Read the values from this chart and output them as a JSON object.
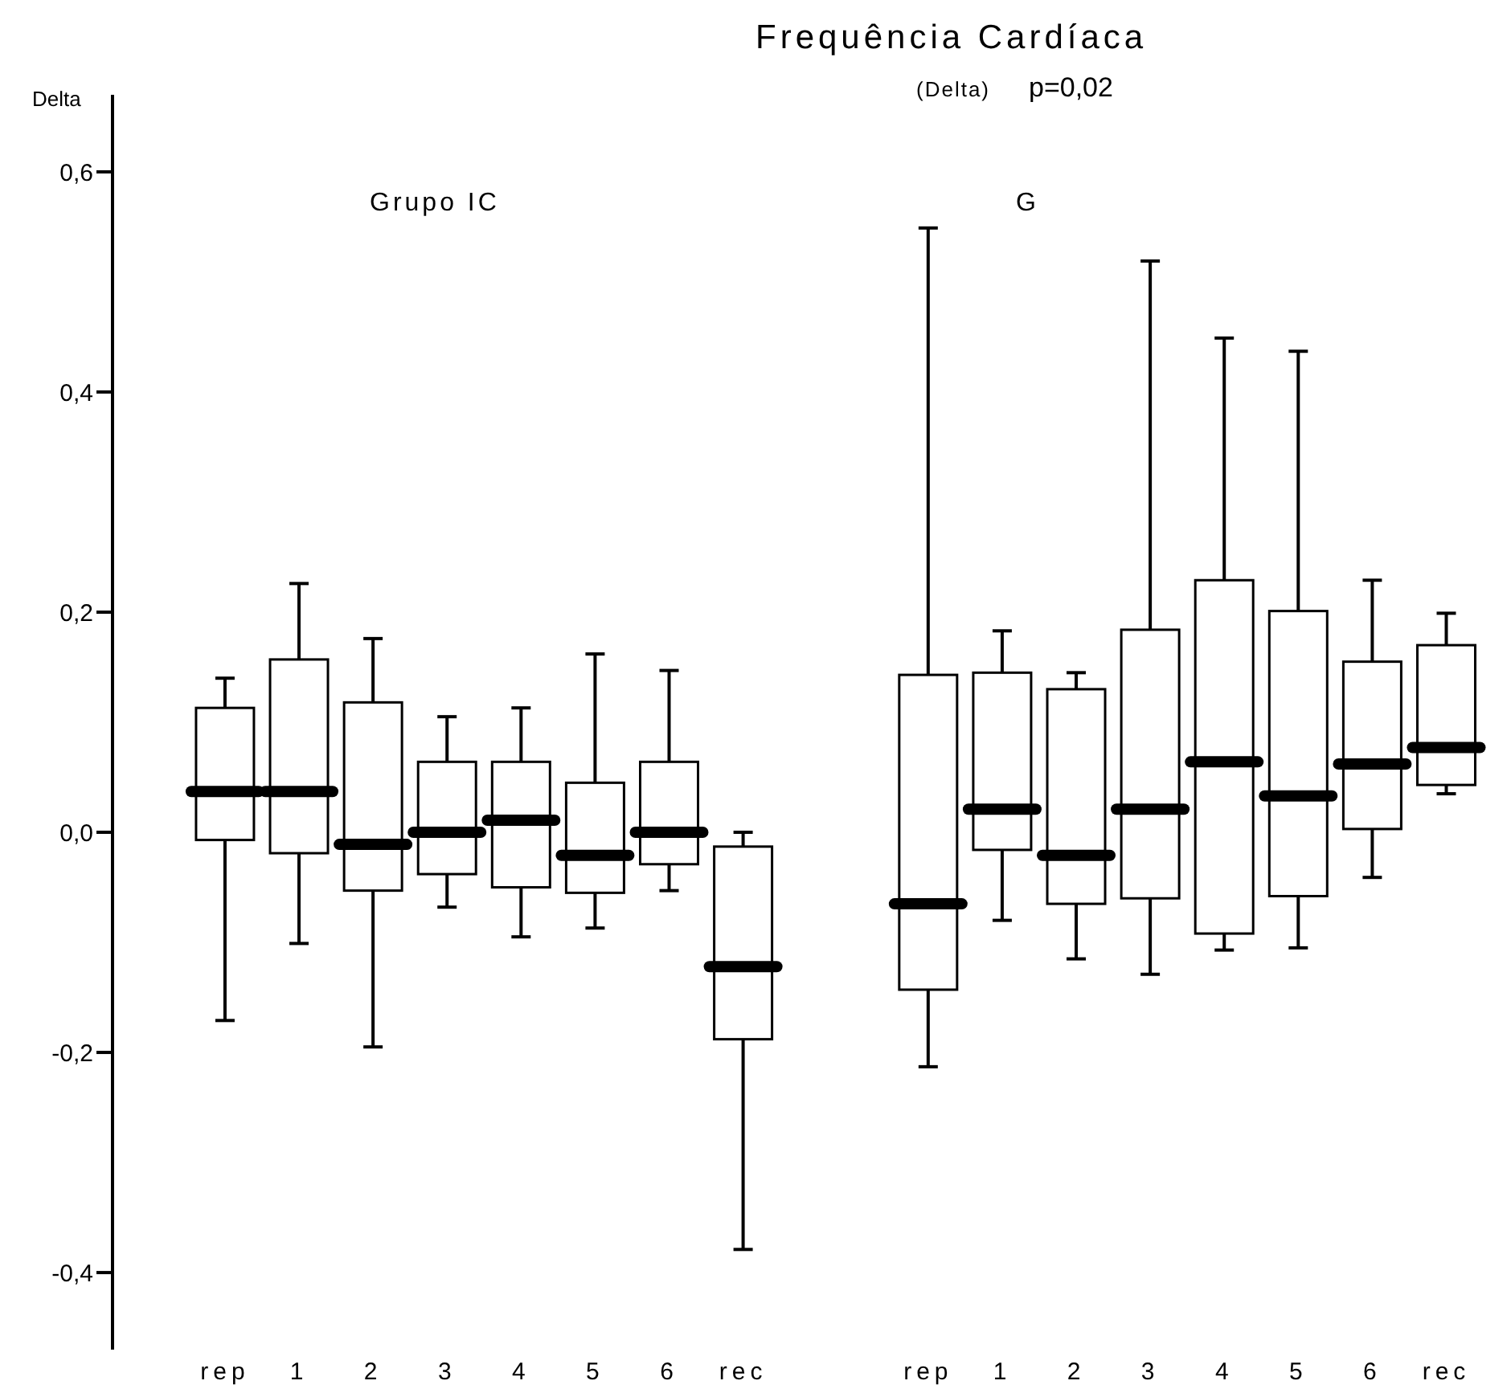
{
  "chart_data": {
    "type": "box",
    "title": "Frequência Cardíaca",
    "subtitle": "(Delta)",
    "ylabel": "Delta",
    "annotations": [
      "p=0,02",
      "Grupo IC",
      "G"
    ],
    "categories": [
      "rep",
      "1",
      "2",
      "3",
      "4",
      "5",
      "6",
      "rec",
      "rep",
      "1",
      "2",
      "3",
      "4",
      "5",
      "6",
      "rec"
    ],
    "boxes": [
      {
        "low": -0.171,
        "q1": -0.007,
        "median": 0.037,
        "q3": 0.113,
        "high": 0.14
      },
      {
        "low": -0.101,
        "q1": -0.019,
        "median": 0.037,
        "q3": 0.157,
        "high": 0.226
      },
      {
        "low": -0.195,
        "q1": -0.053,
        "median": -0.011,
        "q3": 0.118,
        "high": 0.176
      },
      {
        "low": -0.068,
        "q1": -0.038,
        "median": 0.0,
        "q3": 0.064,
        "high": 0.105
      },
      {
        "low": -0.095,
        "q1": -0.05,
        "median": 0.011,
        "q3": 0.064,
        "high": 0.113
      },
      {
        "low": -0.087,
        "q1": -0.055,
        "median": -0.021,
        "q3": 0.045,
        "high": 0.162
      },
      {
        "low": -0.053,
        "q1": -0.029,
        "median": 0.0,
        "q3": 0.064,
        "high": 0.147
      },
      {
        "low": -0.379,
        "q1": -0.188,
        "median": -0.122,
        "q3": -0.013,
        "high": 0.0
      },
      {
        "low": -0.213,
        "q1": -0.143,
        "median": -0.065,
        "q3": 0.143,
        "high": 0.549
      },
      {
        "low": -0.08,
        "q1": -0.016,
        "median": 0.021,
        "q3": 0.145,
        "high": 0.183
      },
      {
        "low": -0.115,
        "q1": -0.065,
        "median": -0.021,
        "q3": 0.13,
        "high": 0.145
      },
      {
        "low": -0.129,
        "q1": -0.06,
        "median": 0.021,
        "q3": 0.184,
        "high": 0.519
      },
      {
        "low": -0.107,
        "q1": -0.092,
        "median": 0.064,
        "q3": 0.229,
        "high": 0.449
      },
      {
        "low": -0.105,
        "q1": -0.058,
        "median": 0.033,
        "q3": 0.201,
        "high": 0.437
      },
      {
        "low": -0.041,
        "q1": 0.003,
        "median": 0.062,
        "q3": 0.155,
        "high": 0.229
      },
      {
        "low": 0.035,
        "q1": 0.043,
        "median": 0.077,
        "q3": 0.17,
        "high": 0.199
      }
    ],
    "ylim": [
      -0.47,
      0.67
    ],
    "yticks": [
      {
        "value": -0.4,
        "label": "-0,4"
      },
      {
        "value": -0.2,
        "label": "-0,2"
      },
      {
        "value": 0,
        "label": "0,0"
      },
      {
        "value": 0.2,
        "label": "0,2"
      },
      {
        "value": 0.4,
        "label": "0,4"
      },
      {
        "value": 0.6,
        "label": "0,6"
      }
    ]
  }
}
